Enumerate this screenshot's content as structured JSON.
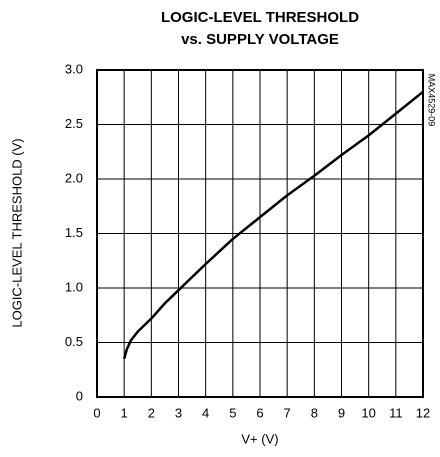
{
  "chart_data": {
    "type": "line",
    "title": [
      "LOGIC-LEVEL THRESHOLD",
      "vs. SUPPLY VOLTAGE"
    ],
    "x_label": "V+ (V)",
    "y_label": "LOGIC-LEVEL THRESHOLD (V)",
    "annotation": "MAX4529-09",
    "x": [
      1.0,
      1.1,
      1.25,
      1.5,
      2,
      2.5,
      3,
      4,
      5,
      6,
      7,
      8,
      9,
      10,
      11,
      12
    ],
    "series": [
      {
        "name": "threshold",
        "color": "#000000",
        "values": [
          0.35,
          0.44,
          0.52,
          0.6,
          0.72,
          0.86,
          0.98,
          1.22,
          1.45,
          1.65,
          1.85,
          2.03,
          2.22,
          2.4,
          2.6,
          2.8
        ]
      }
    ],
    "xlim": [
      0,
      12
    ],
    "xticks": [
      0,
      1,
      2,
      3,
      4,
      5,
      6,
      7,
      8,
      9,
      10,
      11,
      12
    ],
    "ylim": [
      0,
      3
    ],
    "yticks": [
      0,
      0.5,
      {
        "value": 1,
        "label": "1.0"
      },
      1.5,
      {
        "value": 2,
        "label": "2.0"
      },
      2.5,
      {
        "value": 3,
        "label": "3.0"
      }
    ],
    "grid": true
  }
}
